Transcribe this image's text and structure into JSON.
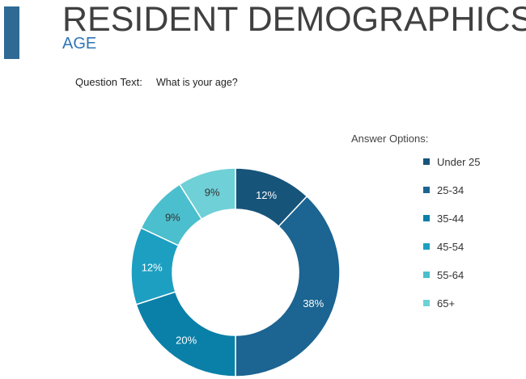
{
  "chart_data": {
    "type": "donut",
    "title": "RESIDENT DEMOGRAPHICS",
    "subtitle": "AGE",
    "question_label": "Question Text:",
    "question": "What is your age?",
    "legend_title": "Answer Options:",
    "legend_position": "right",
    "categories": [
      "Under 25",
      "25-34",
      "35-44",
      "45-54",
      "55-64",
      "65+"
    ],
    "values": [
      12,
      38,
      20,
      12,
      9,
      9
    ],
    "value_labels": [
      "12%",
      "38%",
      "20%",
      "12%",
      "9%",
      "9%"
    ],
    "colors": [
      "#17547a",
      "#1c6491",
      "#0a80a8",
      "#1d9fc1",
      "#4bbfcd",
      "#6fd0d7"
    ]
  }
}
